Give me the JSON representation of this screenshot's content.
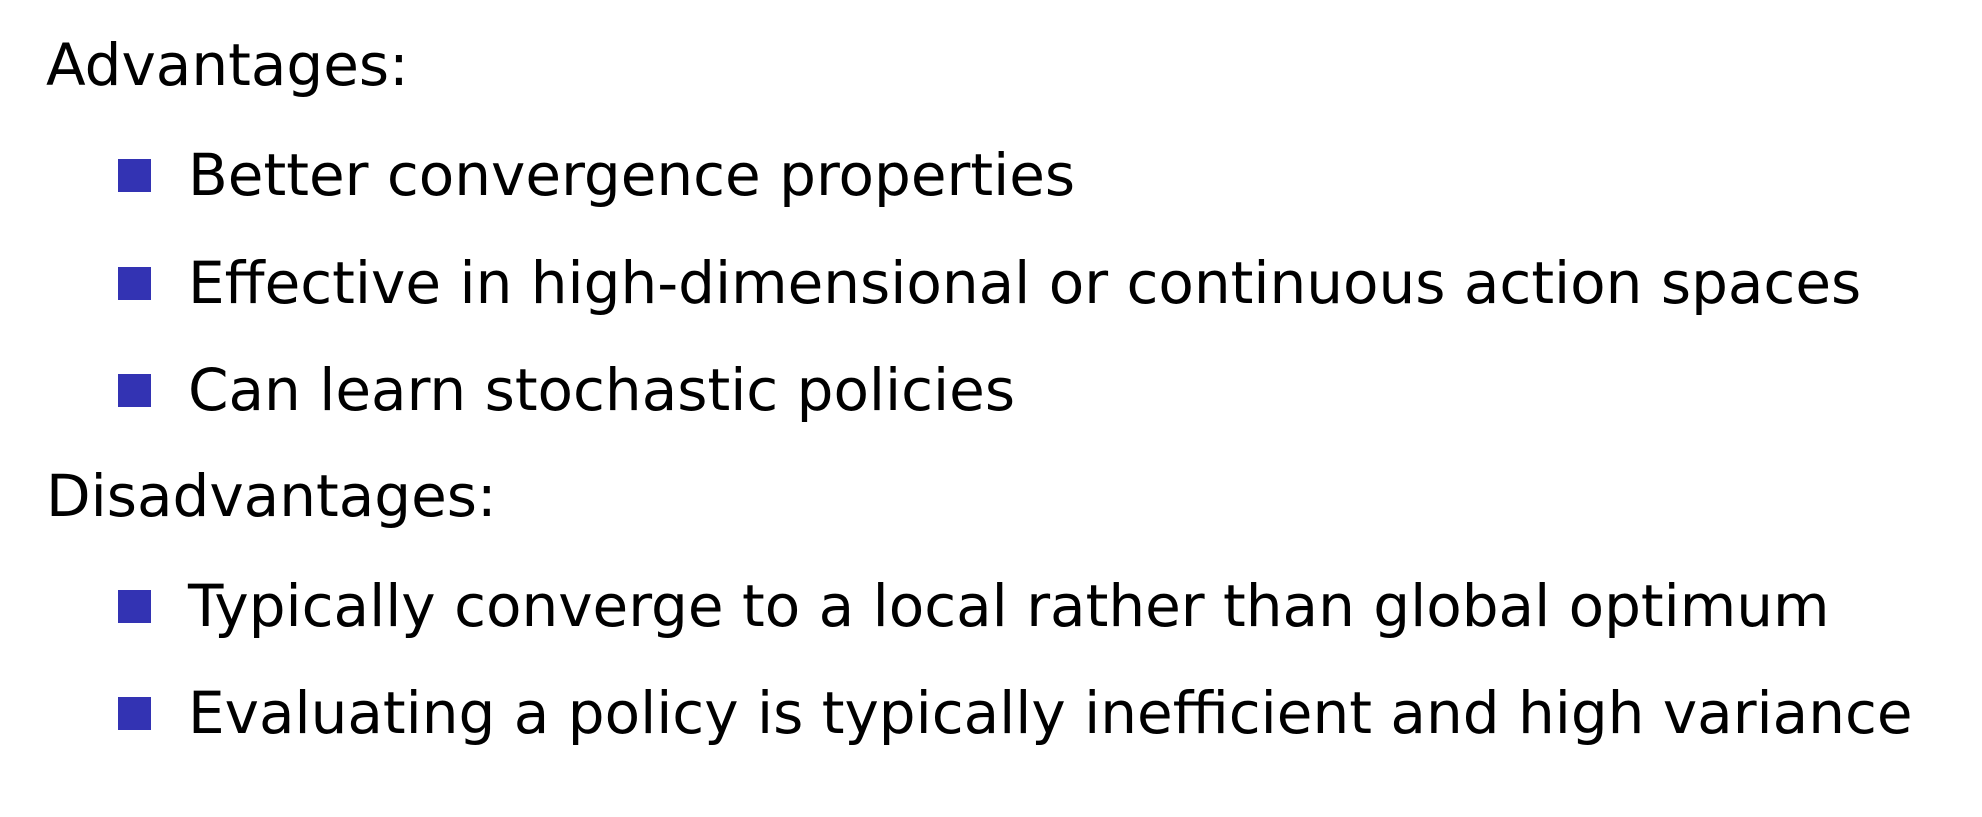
{
  "colors": {
    "bullet": "#3333b3",
    "text": "#000000",
    "background": "#ffffff"
  },
  "advantages": {
    "heading": "Advantages:",
    "items": [
      "Better convergence properties",
      "Effective in high-dimensional or continuous action spaces",
      "Can learn stochastic policies"
    ]
  },
  "disadvantages": {
    "heading": "Disadvantages:",
    "items": [
      "Typically converge to a local rather than global optimum",
      "Evaluating a policy is typically inefficient and high variance"
    ]
  }
}
